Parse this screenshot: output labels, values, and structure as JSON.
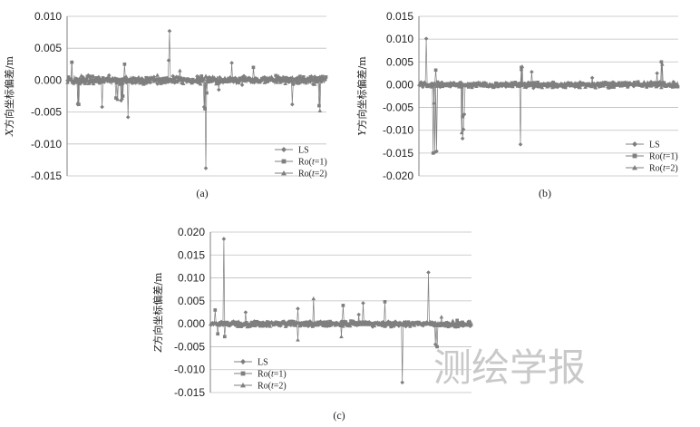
{
  "watermark": "测绘学报",
  "colors": {
    "series": "#7f7f7f",
    "grid": "#bfbfbf",
    "axis": "#7f7f7f",
    "text": "#222222"
  },
  "legend": [
    {
      "label": "LS",
      "marker": "diamond"
    },
    {
      "label": "Ro(t=1)",
      "marker": "square"
    },
    {
      "label": "Ro(t=2)",
      "marker": "triangle"
    }
  ],
  "chart_data": [
    {
      "id": "a",
      "type": "line",
      "caption": "(a)",
      "ylabel": "X方向坐标偏差/m",
      "yticks": [
        "0.010",
        "0.005",
        "0.000",
        "-0.005",
        "-0.010",
        "-0.015"
      ],
      "ylim": [
        -0.015,
        0.01
      ],
      "n": 300,
      "noise": 0.0009,
      "series": [
        {
          "name": "LS",
          "spikes": [
            [
              5,
              0.0028
            ],
            [
              12,
              -0.0038
            ],
            [
              40,
              -0.0042
            ],
            [
              62,
              -0.0032
            ],
            [
              70,
              -0.0058
            ],
            [
              118,
              0.0077
            ],
            [
              117,
              0.0031
            ],
            [
              158,
              -0.0042
            ],
            [
              160,
              -0.0138
            ],
            [
              175,
              -0.0015
            ],
            [
              190,
              0.0027
            ],
            [
              260,
              -0.0038
            ]
          ]
        },
        {
          "name": "Ro(t=1)",
          "spikes": [
            [
              5,
              0.0028
            ],
            [
              13,
              -0.0038
            ],
            [
              56,
              -0.0028
            ],
            [
              64,
              -0.0025
            ],
            [
              66,
              0.0025
            ],
            [
              159,
              -0.0045
            ],
            [
              161,
              -0.002
            ],
            [
              215,
              0.002
            ],
            [
              291,
              -0.004
            ]
          ]
        },
        {
          "name": "Ro(t=2)",
          "spikes": [
            [
              12,
              -0.0035
            ],
            [
              58,
              -0.003
            ],
            [
              63,
              -0.0028
            ],
            [
              130,
              0.0015
            ],
            [
              292,
              -0.0048
            ]
          ]
        }
      ]
    },
    {
      "id": "b",
      "type": "line",
      "caption": "(b)",
      "ylabel": "Y方向坐标偏差/m",
      "yticks": [
        "0.015",
        "0.010",
        "0.005",
        "0.000",
        "-0.005",
        "-0.010",
        "-0.015",
        "-0.020"
      ],
      "ylim": [
        -0.02,
        0.015
      ],
      "n": 300,
      "noise": 0.0008,
      "series": [
        {
          "name": "LS",
          "spikes": [
            [
              8,
              0.0101
            ],
            [
              18,
              -0.0148
            ],
            [
              20,
              -0.0146
            ],
            [
              50,
              -0.0118
            ],
            [
              51,
              -0.0098
            ],
            [
              52,
              -0.0065
            ],
            [
              118,
              0.0032
            ],
            [
              117,
              -0.0131
            ],
            [
              130,
              0.0028
            ],
            [
              200,
              0.0015
            ],
            [
              275,
              0.0025
            ]
          ]
        },
        {
          "name": "Ro(t=1)",
          "spikes": [
            [
              16,
              -0.015
            ],
            [
              19,
              0.0032
            ],
            [
              50,
              -0.007
            ],
            [
              118,
              0.0038
            ],
            [
              280,
              0.005
            ]
          ]
        },
        {
          "name": "Ro(t=2)",
          "spikes": [
            [
              17,
              -0.004
            ],
            [
              49,
              -0.0105
            ],
            [
              119,
              0.004
            ],
            [
              281,
              0.0045
            ]
          ]
        }
      ]
    },
    {
      "id": "c",
      "type": "line",
      "caption": "(c)",
      "ylabel": "Z方向坐标偏差/m",
      "yticks": [
        "0.020",
        "0.015",
        "0.010",
        "0.005",
        "0.000",
        "-0.005",
        "-0.010",
        "-0.015"
      ],
      "ylim": [
        -0.015,
        0.02
      ],
      "n": 300,
      "noise": 0.0008,
      "series": [
        {
          "name": "LS",
          "spikes": [
            [
              15,
              0.0185
            ],
            [
              40,
              0.0025
            ],
            [
              100,
              0.0033
            ],
            [
              170,
              0.002
            ],
            [
              175,
              0.0045
            ],
            [
              220,
              -0.0128
            ],
            [
              250,
              0.0112
            ],
            [
              258,
              -0.0045
            ]
          ]
        },
        {
          "name": "Ro(t=1)",
          "spikes": [
            [
              5,
              0.003
            ],
            [
              8,
              -0.0022
            ],
            [
              16,
              -0.0028
            ],
            [
              152,
              0.004
            ],
            [
              200,
              0.0048
            ],
            [
              260,
              -0.005
            ]
          ]
        },
        {
          "name": "Ro(t=2)",
          "spikes": [
            [
              118,
              0.0055
            ],
            [
              100,
              -0.0035
            ],
            [
              150,
              -0.0028
            ],
            [
              265,
              0.0015
            ]
          ]
        }
      ]
    }
  ]
}
